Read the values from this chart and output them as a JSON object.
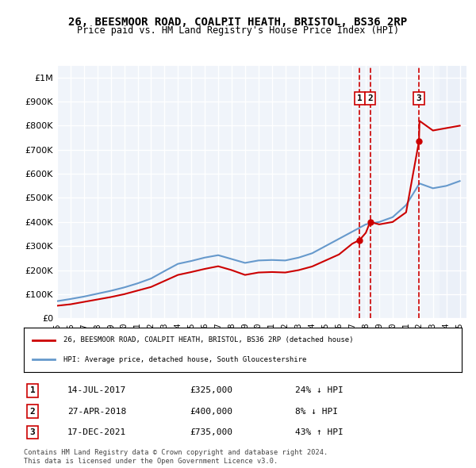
{
  "title": "26, BEESMOOR ROAD, COALPIT HEATH, BRISTOL, BS36 2RP",
  "subtitle": "Price paid vs. HM Land Registry's House Price Index (HPI)",
  "ylabel": "",
  "xlabel": "",
  "ylim": [
    0,
    1050000
  ],
  "xlim_start": 1995.0,
  "xlim_end": 2025.5,
  "yticks": [
    0,
    100000,
    200000,
    300000,
    400000,
    500000,
    600000,
    700000,
    800000,
    900000,
    1000000
  ],
  "ytick_labels": [
    "£0",
    "£100K",
    "£200K",
    "£300K",
    "£400K",
    "£500K",
    "£600K",
    "£700K",
    "£800K",
    "£900K",
    "£1M"
  ],
  "hpi_color": "#6699cc",
  "price_color": "#cc0000",
  "transaction_color": "#cc0000",
  "sale_dates": [
    2017.537,
    2018.32,
    2021.96
  ],
  "sale_prices": [
    325000,
    400000,
    735000
  ],
  "sale_labels": [
    "1",
    "2",
    "3"
  ],
  "sale_info": [
    {
      "label": "1",
      "date": "14-JUL-2017",
      "price": "£325,000",
      "pct": "24% ↓ HPI"
    },
    {
      "label": "2",
      "date": "27-APR-2018",
      "price": "£400,000",
      "pct": "8% ↓ HPI"
    },
    {
      "label": "3",
      "date": "17-DEC-2021",
      "price": "£735,000",
      "pct": "43% ↑ HPI"
    }
  ],
  "legend_line1": "26, BEESMOOR ROAD, COALPIT HEATH, BRISTOL, BS36 2RP (detached house)",
  "legend_line2": "HPI: Average price, detached house, South Gloucestershire",
  "footnote": "Contains HM Land Registry data © Crown copyright and database right 2024.\nThis data is licensed under the Open Government Licence v3.0.",
  "bg_color": "#ffffff",
  "plot_bg_color": "#f0f4fa",
  "grid_color": "#ffffff",
  "hpi_years": [
    1995,
    1996,
    1997,
    1998,
    1999,
    2000,
    2001,
    2002,
    2003,
    2004,
    2005,
    2006,
    2007,
    2008,
    2009,
    2010,
    2011,
    2012,
    2013,
    2014,
    2015,
    2016,
    2017,
    2018,
    2019,
    2020,
    2021,
    2022,
    2023,
    2024,
    2025
  ],
  "hpi_values": [
    71000,
    80000,
    90000,
    102000,
    114000,
    128000,
    145000,
    165000,
    196000,
    226000,
    238000,
    252000,
    262000,
    246000,
    230000,
    240000,
    242000,
    240000,
    252000,
    270000,
    300000,
    330000,
    360000,
    390000,
    400000,
    420000,
    470000,
    560000,
    540000,
    550000,
    570000
  ],
  "price_years": [
    1995,
    1996,
    1997,
    1998,
    1999,
    2000,
    2001,
    2002,
    2003,
    2004,
    2005,
    2006,
    2007,
    2008,
    2009,
    2010,
    2011,
    2012,
    2013,
    2014,
    2015,
    2016,
    2017,
    2017.537,
    2018,
    2018.32,
    2019,
    2020,
    2021,
    2021.96,
    2022,
    2023,
    2024,
    2025
  ],
  "price_values": [
    52000,
    58000,
    68000,
    78000,
    88000,
    100000,
    115000,
    130000,
    155000,
    180000,
    192000,
    205000,
    216000,
    200000,
    180000,
    190000,
    192000,
    190000,
    200000,
    215000,
    240000,
    265000,
    310000,
    325000,
    355000,
    400000,
    390000,
    400000,
    440000,
    735000,
    820000,
    780000,
    790000,
    800000
  ]
}
